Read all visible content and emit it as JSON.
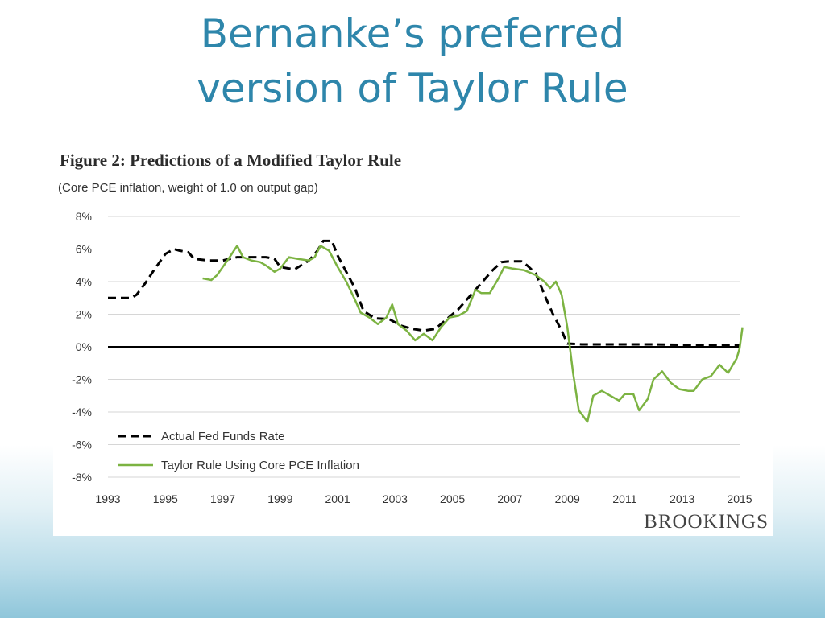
{
  "slide": {
    "title_line1": "Bernanke’s preferred",
    "title_line2": "version of  Taylor Rule"
  },
  "chart_data": {
    "type": "line",
    "title": "Figure 2: Predictions of a Modified Taylor Rule",
    "subtitle": "(Core PCE inflation, weight of 1.0 on output gap)",
    "xlabel": "",
    "ylabel": "",
    "xlim": [
      1993,
      2015
    ],
    "ylim": [
      -8,
      8
    ],
    "xticks": [
      "1993",
      "1995",
      "1997",
      "1999",
      "2001",
      "2003",
      "2005",
      "2007",
      "2009",
      "2011",
      "2013",
      "2015"
    ],
    "yticks": [
      {
        "value": 8,
        "label": "8%"
      },
      {
        "value": 6,
        "label": "6%"
      },
      {
        "value": 4,
        "label": "4%"
      },
      {
        "value": 2,
        "label": "2%"
      },
      {
        "value": 0,
        "label": "0%"
      },
      {
        "value": -2,
        "label": "-2%"
      },
      {
        "value": -4,
        "label": "-4%"
      },
      {
        "value": -6,
        "label": "-6%"
      },
      {
        "value": -8,
        "label": "-8%"
      }
    ],
    "grid": true,
    "legend_position": "bottom-left",
    "series": [
      {
        "name": "Actual Fed Funds Rate",
        "color": "#000000",
        "style": "dashed",
        "points": [
          [
            1993.0,
            3.0
          ],
          [
            1993.5,
            3.0
          ],
          [
            1993.8,
            3.0
          ],
          [
            1994.0,
            3.2
          ],
          [
            1994.3,
            3.9
          ],
          [
            1994.6,
            4.7
          ],
          [
            1995.0,
            5.7
          ],
          [
            1995.3,
            6.0
          ],
          [
            1995.5,
            5.9
          ],
          [
            1995.8,
            5.8
          ],
          [
            1996.0,
            5.4
          ],
          [
            1996.5,
            5.3
          ],
          [
            1997.0,
            5.3
          ],
          [
            1997.5,
            5.5
          ],
          [
            1998.0,
            5.5
          ],
          [
            1998.5,
            5.5
          ],
          [
            1998.8,
            5.4
          ],
          [
            1999.0,
            4.9
          ],
          [
            1999.5,
            4.75
          ],
          [
            2000.0,
            5.3
          ],
          [
            2000.3,
            5.9
          ],
          [
            2000.5,
            6.5
          ],
          [
            2000.8,
            6.5
          ],
          [
            2001.0,
            5.6
          ],
          [
            2001.3,
            4.6
          ],
          [
            2001.6,
            3.6
          ],
          [
            2001.9,
            2.2
          ],
          [
            2002.3,
            1.75
          ],
          [
            2002.8,
            1.7
          ],
          [
            2003.2,
            1.3
          ],
          [
            2003.6,
            1.1
          ],
          [
            2004.0,
            1.0
          ],
          [
            2004.4,
            1.1
          ],
          [
            2004.8,
            1.7
          ],
          [
            2005.2,
            2.3
          ],
          [
            2005.6,
            3.1
          ],
          [
            2006.0,
            3.9
          ],
          [
            2006.4,
            4.7
          ],
          [
            2006.7,
            5.2
          ],
          [
            2007.0,
            5.25
          ],
          [
            2007.4,
            5.25
          ],
          [
            2007.6,
            5.0
          ],
          [
            2007.9,
            4.5
          ],
          [
            2008.2,
            3.2
          ],
          [
            2008.5,
            2.0
          ],
          [
            2008.8,
            1.0
          ],
          [
            2009.0,
            0.2
          ],
          [
            2009.5,
            0.15
          ],
          [
            2010.0,
            0.15
          ],
          [
            2011.0,
            0.15
          ],
          [
            2012.0,
            0.15
          ],
          [
            2013.0,
            0.12
          ],
          [
            2014.0,
            0.1
          ],
          [
            2015.0,
            0.12
          ]
        ]
      },
      {
        "name": "Taylor Rule Using Core PCE Inflation",
        "color": "#7cb342",
        "style": "solid",
        "points": [
          [
            1996.3,
            4.2
          ],
          [
            1996.6,
            4.1
          ],
          [
            1996.8,
            4.4
          ],
          [
            1997.0,
            4.9
          ],
          [
            1997.2,
            5.4
          ],
          [
            1997.5,
            6.2
          ],
          [
            1997.7,
            5.5
          ],
          [
            1998.0,
            5.3
          ],
          [
            1998.3,
            5.2
          ],
          [
            1998.5,
            5.0
          ],
          [
            1998.8,
            4.6
          ],
          [
            1999.0,
            4.8
          ],
          [
            1999.3,
            5.5
          ],
          [
            1999.6,
            5.4
          ],
          [
            2000.0,
            5.3
          ],
          [
            2000.2,
            5.5
          ],
          [
            2000.4,
            6.2
          ],
          [
            2000.7,
            5.9
          ],
          [
            2001.0,
            4.9
          ],
          [
            2001.3,
            4.0
          ],
          [
            2001.6,
            2.9
          ],
          [
            2001.8,
            2.1
          ],
          [
            2002.1,
            1.8
          ],
          [
            2002.4,
            1.4
          ],
          [
            2002.7,
            1.8
          ],
          [
            2002.9,
            2.6
          ],
          [
            2003.1,
            1.4
          ],
          [
            2003.4,
            1.0
          ],
          [
            2003.7,
            0.4
          ],
          [
            2004.0,
            0.8
          ],
          [
            2004.3,
            0.4
          ],
          [
            2004.6,
            1.2
          ],
          [
            2004.9,
            1.8
          ],
          [
            2005.2,
            1.9
          ],
          [
            2005.5,
            2.2
          ],
          [
            2005.8,
            3.5
          ],
          [
            2006.0,
            3.3
          ],
          [
            2006.3,
            3.3
          ],
          [
            2006.6,
            4.2
          ],
          [
            2006.8,
            4.9
          ],
          [
            2007.1,
            4.8
          ],
          [
            2007.5,
            4.7
          ],
          [
            2007.9,
            4.4
          ],
          [
            2008.2,
            4.0
          ],
          [
            2008.4,
            3.6
          ],
          [
            2008.6,
            4.0
          ],
          [
            2008.8,
            3.2
          ],
          [
            2009.0,
            1.2
          ],
          [
            2009.2,
            -1.6
          ],
          [
            2009.4,
            -3.9
          ],
          [
            2009.7,
            -4.6
          ],
          [
            2009.9,
            -3.0
          ],
          [
            2010.2,
            -2.7
          ],
          [
            2010.5,
            -3.0
          ],
          [
            2010.8,
            -3.3
          ],
          [
            2011.0,
            -2.9
          ],
          [
            2011.3,
            -2.9
          ],
          [
            2011.5,
            -3.9
          ],
          [
            2011.8,
            -3.2
          ],
          [
            2012.0,
            -2.0
          ],
          [
            2012.3,
            -1.5
          ],
          [
            2012.6,
            -2.2
          ],
          [
            2012.9,
            -2.6
          ],
          [
            2013.2,
            -2.7
          ],
          [
            2013.4,
            -2.7
          ],
          [
            2013.7,
            -2.0
          ],
          [
            2014.0,
            -1.8
          ],
          [
            2014.3,
            -1.1
          ],
          [
            2014.6,
            -1.6
          ],
          [
            2014.9,
            -0.7
          ],
          [
            2015.0,
            -0.1
          ],
          [
            2015.1,
            1.2
          ]
        ]
      }
    ],
    "source": "BROOKINGS"
  }
}
